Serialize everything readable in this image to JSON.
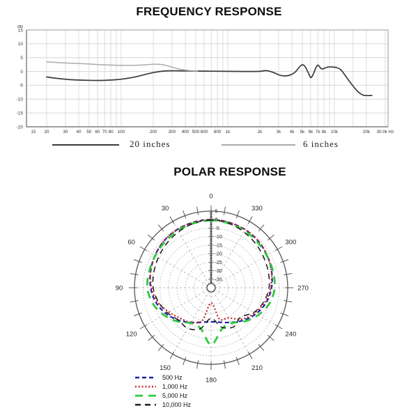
{
  "chart_data": [
    {
      "type": "line",
      "title": "FREQUENCY RESPONSE",
      "xlabel": "Hz",
      "ylabel": "dB",
      "x_scale": "log",
      "ylim": [
        -20,
        15
      ],
      "grid": true,
      "legend_position": "below",
      "y_ticks": [
        15,
        10,
        5,
        0,
        -5,
        -10,
        -15,
        -20
      ],
      "x_ticks": [
        {
          "f": 15,
          "label": "15"
        },
        {
          "f": 20,
          "label": "20"
        },
        {
          "f": 30,
          "label": "30"
        },
        {
          "f": 40,
          "label": "40"
        },
        {
          "f": 50,
          "label": "50"
        },
        {
          "f": 60,
          "label": "60"
        },
        {
          "f": 70,
          "label": "70"
        },
        {
          "f": 80,
          "label": "80"
        },
        {
          "f": 100,
          "label": "100"
        },
        {
          "f": 200,
          "label": "200"
        },
        {
          "f": 300,
          "label": "300"
        },
        {
          "f": 400,
          "label": "400"
        },
        {
          "f": 500,
          "label": "500"
        },
        {
          "f": 600,
          "label": "600"
        },
        {
          "f": 800,
          "label": "800"
        },
        {
          "f": 1000,
          "label": "1k"
        },
        {
          "f": 2000,
          "label": "2k"
        },
        {
          "f": 3000,
          "label": "3k"
        },
        {
          "f": 4000,
          "label": "4k"
        },
        {
          "f": 5000,
          "label": "5k"
        },
        {
          "f": 6000,
          "label": "6k"
        },
        {
          "f": 7000,
          "label": "7k"
        },
        {
          "f": 8000,
          "label": "8k"
        },
        {
          "f": 10000,
          "label": "10k"
        },
        {
          "f": 20000,
          "label": "20k"
        },
        {
          "f": 30000,
          "label": "30.0k Hz"
        }
      ],
      "grid_freqs": [
        20,
        30,
        40,
        50,
        60,
        70,
        80,
        90,
        100,
        200,
        300,
        400,
        500,
        600,
        700,
        800,
        900,
        1000,
        2000,
        3000,
        4000,
        5000,
        6000,
        7000,
        8000,
        9000,
        10000,
        15000,
        20000,
        30000
      ],
      "legend": [
        "20 inches",
        "6 inches"
      ],
      "series": [
        {
          "name": "20 inches",
          "color": "#3a3a3a",
          "width": 1.7,
          "points": [
            [
              20,
              -2
            ],
            [
              25,
              -2.5
            ],
            [
              32,
              -2.9
            ],
            [
              40,
              -3.1
            ],
            [
              50,
              -3.2
            ],
            [
              65,
              -3.25
            ],
            [
              80,
              -3.1
            ],
            [
              100,
              -2.8
            ],
            [
              130,
              -2.1
            ],
            [
              160,
              -1.3
            ],
            [
              200,
              -0.4
            ],
            [
              250,
              0.15
            ],
            [
              300,
              0.25
            ],
            [
              400,
              0.2
            ],
            [
              500,
              0.15
            ],
            [
              700,
              0.1
            ],
            [
              1000,
              0.05
            ],
            [
              1500,
              0
            ],
            [
              2000,
              0.05
            ],
            [
              2300,
              0.3
            ],
            [
              2700,
              -0.4
            ],
            [
              3100,
              -1.4
            ],
            [
              3500,
              -1.6
            ],
            [
              3900,
              -1.2
            ],
            [
              4300,
              -0.2
            ],
            [
              4700,
              1.6
            ],
            [
              5000,
              2.4
            ],
            [
              5300,
              1.8
            ],
            [
              5700,
              -0.5
            ],
            [
              6000,
              -2.2
            ],
            [
              6300,
              -1.2
            ],
            [
              6700,
              1.3
            ],
            [
              7000,
              2.3
            ],
            [
              7300,
              1.6
            ],
            [
              7600,
              0.9
            ],
            [
              8000,
              1.1
            ],
            [
              8700,
              1.6
            ],
            [
              9500,
              1.6
            ],
            [
              10500,
              1.4
            ],
            [
              11500,
              0.6
            ],
            [
              12500,
              -1.2
            ],
            [
              14000,
              -3.8
            ],
            [
              15500,
              -6
            ],
            [
              17000,
              -7.6
            ],
            [
              18500,
              -8.5
            ],
            [
              20000,
              -8.7
            ],
            [
              22500,
              -8.7
            ]
          ]
        },
        {
          "name": "6 inches",
          "color": "#ababab",
          "width": 1.5,
          "points": [
            [
              20,
              3.5
            ],
            [
              26,
              3.2
            ],
            [
              34,
              3
            ],
            [
              45,
              2.8
            ],
            [
              60,
              2.5
            ],
            [
              80,
              2.3
            ],
            [
              100,
              2.2
            ],
            [
              130,
              2.2
            ],
            [
              160,
              2.35
            ],
            [
              200,
              2.6
            ],
            [
              240,
              2.5
            ],
            [
              280,
              1.9
            ],
            [
              330,
              1.1
            ],
            [
              390,
              0.55
            ],
            [
              450,
              0.3
            ],
            [
              520,
              0.15
            ]
          ]
        }
      ]
    },
    {
      "type": "polar",
      "title": "POLAR RESPONSE",
      "rlim": [
        -40,
        5
      ],
      "angle_step_deg": 15,
      "angle_labels_deg": [
        0,
        30,
        60,
        90,
        120,
        150,
        180,
        210,
        240,
        270,
        300,
        330
      ],
      "radial_ticks_db": [
        5,
        0,
        -5,
        -10,
        -15,
        -20,
        -25,
        -30,
        -35
      ],
      "legend_position": "bottom-left",
      "legend": [
        "500 Hz",
        "1,000 Hz",
        "5,000 Hz",
        "10,000 Hz"
      ],
      "series": [
        {
          "name": "500 Hz",
          "color": "#1c1cb0",
          "dash": "6 4",
          "width": 2.2,
          "values_db": [
            0,
            -0.2,
            -0.5,
            -1,
            -2,
            -3.2,
            -4.5,
            -6.5,
            -9.5,
            -13,
            -16.5,
            -19,
            -20,
            -19,
            -16.5,
            -13,
            -9.5,
            -6.5,
            -4.5,
            -3.2,
            -2,
            -1,
            -0.5,
            -0.2
          ]
        },
        {
          "name": "1,000 Hz",
          "color": "#cc2222",
          "dash": "2 2.8",
          "width": 2.2,
          "values_db": [
            0,
            -0.2,
            -0.5,
            -1,
            -2,
            -3.2,
            -5,
            -7.5,
            -11.5,
            -14.5,
            -16.5,
            -20,
            -31,
            -21,
            -19.5,
            -14,
            -10.5,
            -7.2,
            -5,
            -3.3,
            -2,
            -1,
            -0.5,
            -0.2
          ]
        },
        {
          "name": "5,000 Hz",
          "color": "#2fc93f",
          "dash": "11 8",
          "width": 2.8,
          "values_db": [
            -0.5,
            -0.8,
            -1.2,
            -1.8,
            -2.2,
            -2.4,
            -2.6,
            -4.5,
            -8,
            -12,
            -16,
            -15.5,
            -6.5,
            -15,
            -16,
            -12,
            -8,
            -4.5,
            -2.6,
            -2.4,
            -2.2,
            -1.8,
            -1.2,
            -0.8
          ]
        },
        {
          "name": "10,000 Hz",
          "color": "#1a1a1a",
          "dash": "8 6",
          "width": 1.5,
          "values_db": [
            -0.3,
            -0.8,
            -2,
            -3.2,
            -4.3,
            -5.2,
            -6,
            -8,
            -10.5,
            -13,
            -12.5,
            -15,
            -22,
            -16,
            -13.5,
            -15.5,
            -11,
            -8,
            -6,
            -5.2,
            -4.3,
            -3.2,
            -2,
            -0.8
          ]
        }
      ]
    }
  ]
}
